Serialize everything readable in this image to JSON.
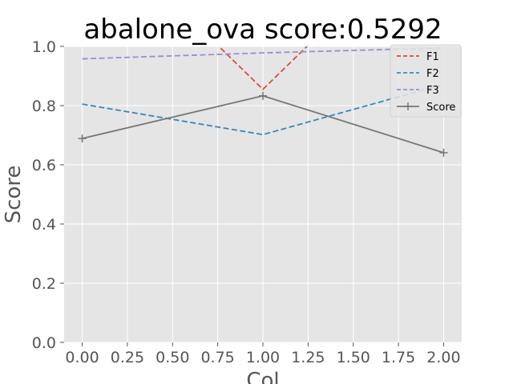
{
  "chart_data": {
    "type": "line",
    "title": "abalone_ova score:0.5292",
    "xlabel": "Col",
    "ylabel": "Score",
    "xlim": [
      -0.1,
      2.1
    ],
    "ylim": [
      0.0,
      1.0
    ],
    "xticks": [
      "0.00",
      "0.25",
      "0.50",
      "0.75",
      "1.00",
      "1.25",
      "1.50",
      "1.75",
      "2.00"
    ],
    "yticks": [
      "0.0",
      "0.2",
      "0.4",
      "0.6",
      "0.8",
      "1.0"
    ],
    "grid": true,
    "legend_position": "top-right",
    "x": [
      0,
      1,
      2
    ],
    "series": [
      {
        "name": "F1",
        "values": [
          1.45,
          0.855,
          1.45
        ],
        "color": "#e24a33",
        "style": "dashed",
        "marker": "none"
      },
      {
        "name": "F2",
        "values": [
          0.805,
          0.702,
          0.872
        ],
        "color": "#348abd",
        "style": "dashed",
        "marker": "none"
      },
      {
        "name": "F3",
        "values": [
          0.958,
          0.978,
          0.995
        ],
        "color": "#988ed5",
        "style": "dashed",
        "marker": "none"
      },
      {
        "name": "Score",
        "values": [
          0.689,
          0.833,
          0.641
        ],
        "color": "#777777",
        "style": "solid",
        "marker": "plus"
      }
    ]
  }
}
